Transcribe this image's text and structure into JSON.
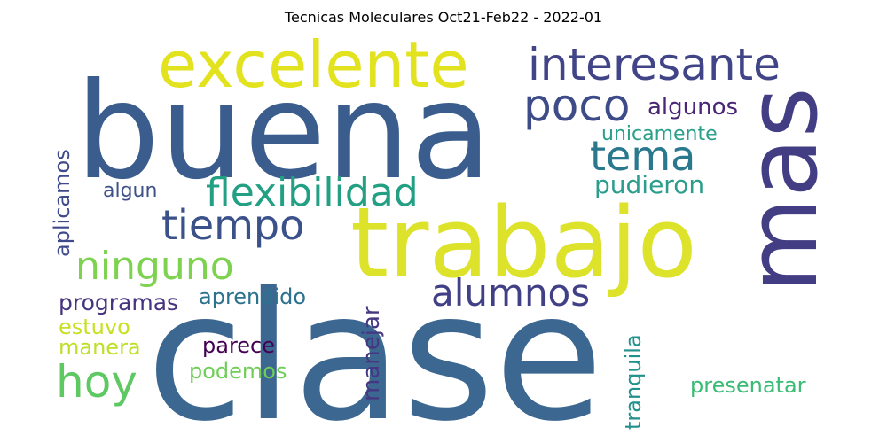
{
  "title": "Tecnicas Moleculares Oct21-Feb22 - 2022-01",
  "words": [
    {
      "text": "buena",
      "color": "#3b5d8e"
    },
    {
      "text": "clase",
      "color": "#3c6791"
    },
    {
      "text": "trabajo",
      "color": "#dde22a"
    },
    {
      "text": "mas",
      "color": "#433d84"
    },
    {
      "text": "excelente",
      "color": "#e2e21f"
    },
    {
      "text": "interesante",
      "color": "#414487"
    },
    {
      "text": "poco",
      "color": "#3e4b89"
    },
    {
      "text": "algunos",
      "color": "#482576"
    },
    {
      "text": "unicamente",
      "color": "#2aa08a"
    },
    {
      "text": "tema",
      "color": "#29788e"
    },
    {
      "text": "flexibilidad",
      "color": "#23a084"
    },
    {
      "text": "pudieron",
      "color": "#2a9d8c"
    },
    {
      "text": "algun",
      "color": "#3e5189"
    },
    {
      "text": "tiempo",
      "color": "#3b5189"
    },
    {
      "text": "aplicamos",
      "color": "#3f4a8a"
    },
    {
      "text": "ninguno",
      "color": "#7dd250"
    },
    {
      "text": "alumnos",
      "color": "#413f85"
    },
    {
      "text": "programas",
      "color": "#46337f"
    },
    {
      "text": "aprendido",
      "color": "#2c728e"
    },
    {
      "text": "estuvo",
      "color": "#c8e020"
    },
    {
      "text": "manera",
      "color": "#bddf26"
    },
    {
      "text": "hoy",
      "color": "#5ec962"
    },
    {
      "text": "parece",
      "color": "#440154"
    },
    {
      "text": "podemos",
      "color": "#6ece58"
    },
    {
      "text": "manejar",
      "color": "#453781"
    },
    {
      "text": "tranquila",
      "color": "#21918c"
    },
    {
      "text": "presenatar",
      "color": "#3bbb75"
    }
  ]
}
